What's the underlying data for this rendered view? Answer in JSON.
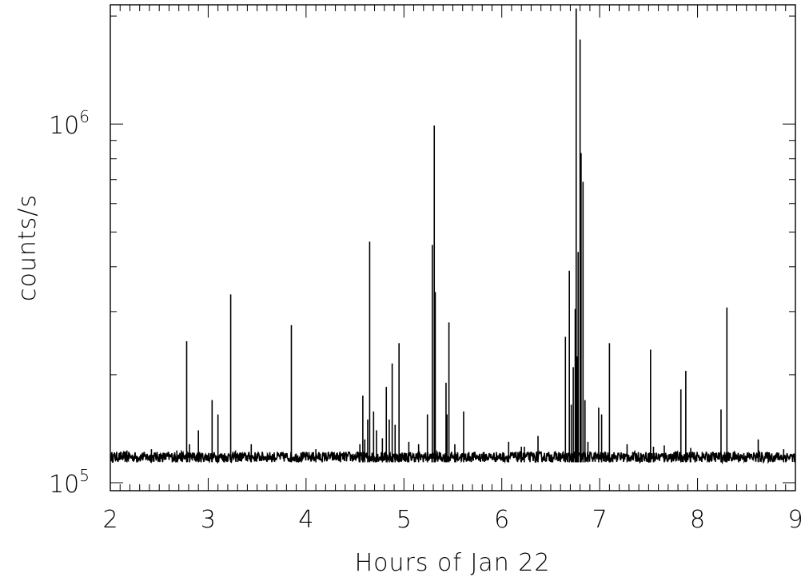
{
  "chart_data": {
    "type": "line",
    "title": "",
    "xlabel": "Hours of Jan 22",
    "ylabel": "counts/s",
    "xlim": [
      2,
      9
    ],
    "ylim": [
      95000,
      2150000
    ],
    "yscale": "log",
    "x_ticks": [
      2,
      3,
      4,
      5,
      6,
      7,
      8,
      9
    ],
    "x_tick_labels": [
      "2",
      "3",
      "4",
      "5",
      "6",
      "7",
      "8",
      "9"
    ],
    "y_ticks": [
      {
        "value": 100000,
        "base": "10",
        "exp": "5"
      },
      {
        "value": 1000000,
        "base": "10",
        "exp": "6"
      }
    ],
    "grid": false,
    "line_color": "#000000",
    "baseline": 118000,
    "baseline_noise": 4000,
    "spikes": [
      {
        "x": 2.17,
        "y": 123000
      },
      {
        "x": 2.42,
        "y": 124000
      },
      {
        "x": 2.68,
        "y": 123000
      },
      {
        "x": 2.78,
        "y": 248000
      },
      {
        "x": 2.81,
        "y": 128000
      },
      {
        "x": 2.9,
        "y": 140000
      },
      {
        "x": 3.04,
        "y": 170000
      },
      {
        "x": 3.1,
        "y": 155000
      },
      {
        "x": 3.23,
        "y": 335000
      },
      {
        "x": 3.44,
        "y": 128000
      },
      {
        "x": 3.85,
        "y": 275000
      },
      {
        "x": 4.1,
        "y": 124000
      },
      {
        "x": 4.55,
        "y": 128000
      },
      {
        "x": 4.58,
        "y": 175000
      },
      {
        "x": 4.6,
        "y": 132000
      },
      {
        "x": 4.63,
        "y": 150000
      },
      {
        "x": 4.65,
        "y": 470000
      },
      {
        "x": 4.69,
        "y": 158000
      },
      {
        "x": 4.72,
        "y": 140000
      },
      {
        "x": 4.78,
        "y": 133000
      },
      {
        "x": 4.82,
        "y": 185000
      },
      {
        "x": 4.85,
        "y": 150000
      },
      {
        "x": 4.88,
        "y": 215000
      },
      {
        "x": 4.91,
        "y": 145000
      },
      {
        "x": 4.95,
        "y": 245000
      },
      {
        "x": 5.05,
        "y": 130000
      },
      {
        "x": 5.15,
        "y": 128000
      },
      {
        "x": 5.24,
        "y": 155000
      },
      {
        "x": 5.29,
        "y": 460000
      },
      {
        "x": 5.31,
        "y": 990000
      },
      {
        "x": 5.32,
        "y": 340000
      },
      {
        "x": 5.43,
        "y": 190000
      },
      {
        "x": 5.44,
        "y": 155000
      },
      {
        "x": 5.46,
        "y": 280000
      },
      {
        "x": 5.52,
        "y": 128000
      },
      {
        "x": 5.61,
        "y": 158000
      },
      {
        "x": 6.07,
        "y": 130000
      },
      {
        "x": 6.2,
        "y": 126000
      },
      {
        "x": 6.23,
        "y": 126000
      },
      {
        "x": 6.37,
        "y": 135000
      },
      {
        "x": 6.65,
        "y": 255000
      },
      {
        "x": 6.69,
        "y": 390000
      },
      {
        "x": 6.71,
        "y": 165000
      },
      {
        "x": 6.73,
        "y": 210000
      },
      {
        "x": 6.75,
        "y": 305000
      },
      {
        "x": 6.76,
        "y": 2100000
      },
      {
        "x": 6.77,
        "y": 225000
      },
      {
        "x": 6.78,
        "y": 440000
      },
      {
        "x": 6.8,
        "y": 1720000
      },
      {
        "x": 6.81,
        "y": 830000
      },
      {
        "x": 6.83,
        "y": 690000
      },
      {
        "x": 6.85,
        "y": 170000
      },
      {
        "x": 6.88,
        "y": 130000
      },
      {
        "x": 6.99,
        "y": 162000
      },
      {
        "x": 7.02,
        "y": 155000
      },
      {
        "x": 7.1,
        "y": 245000
      },
      {
        "x": 7.28,
        "y": 128000
      },
      {
        "x": 7.52,
        "y": 235000
      },
      {
        "x": 7.55,
        "y": 126000
      },
      {
        "x": 7.66,
        "y": 127000
      },
      {
        "x": 7.83,
        "y": 182000
      },
      {
        "x": 7.88,
        "y": 205000
      },
      {
        "x": 7.93,
        "y": 125000
      },
      {
        "x": 8.24,
        "y": 160000
      },
      {
        "x": 8.3,
        "y": 308000
      },
      {
        "x": 8.62,
        "y": 132000
      },
      {
        "x": 8.88,
        "y": 124000
      }
    ]
  }
}
